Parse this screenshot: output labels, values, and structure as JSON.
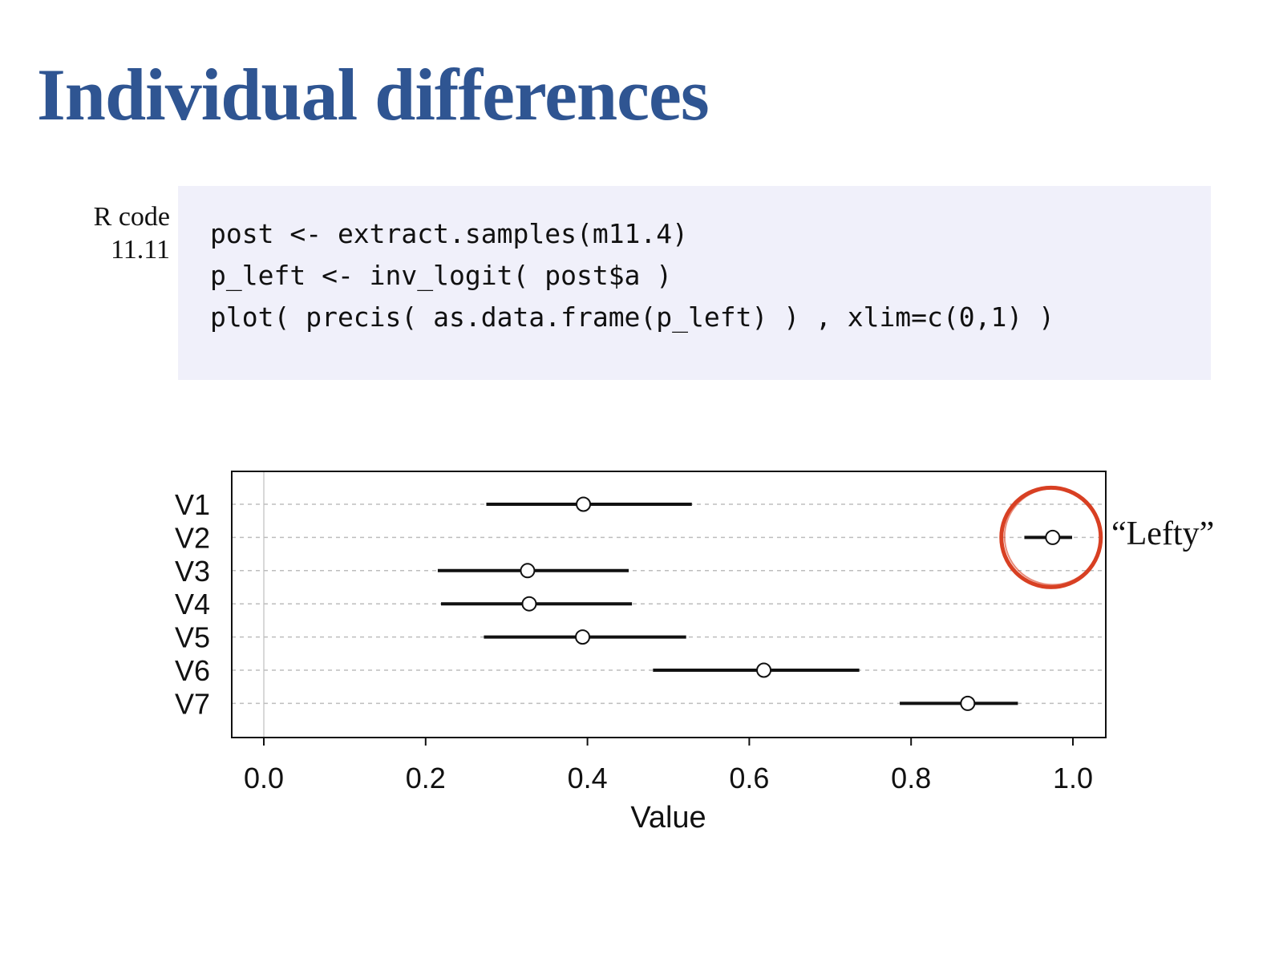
{
  "slide": {
    "title": "Individual differences"
  },
  "code": {
    "label_line1": "R code",
    "label_line2": "11.11",
    "lines": [
      "post <- extract.samples(m11.4)",
      "p_left <- inv_logit( post$a )",
      "plot( precis( as.data.frame(p_left) ) , xlim=c(0,1) )"
    ]
  },
  "annotation": {
    "text": "“Lefty”",
    "highlight_color": "#d84023",
    "highlighted_series": "V2"
  },
  "chart_data": {
    "type": "dot-interval",
    "categories": [
      "V1",
      "V2",
      "V3",
      "V4",
      "V5",
      "V6",
      "V7"
    ],
    "means": [
      0.395,
      0.975,
      0.326,
      0.328,
      0.394,
      0.618,
      0.87
    ],
    "lower": [
      0.275,
      0.94,
      0.215,
      0.219,
      0.272,
      0.481,
      0.786
    ],
    "upper": [
      0.529,
      0.999,
      0.451,
      0.455,
      0.522,
      0.736,
      0.932
    ],
    "xlabel": "Value",
    "xlim": [
      0,
      1
    ],
    "xticks": [
      "0.0",
      "0.2",
      "0.4",
      "0.6",
      "0.8",
      "1.0"
    ],
    "grid": "dashed horizontal per row"
  }
}
